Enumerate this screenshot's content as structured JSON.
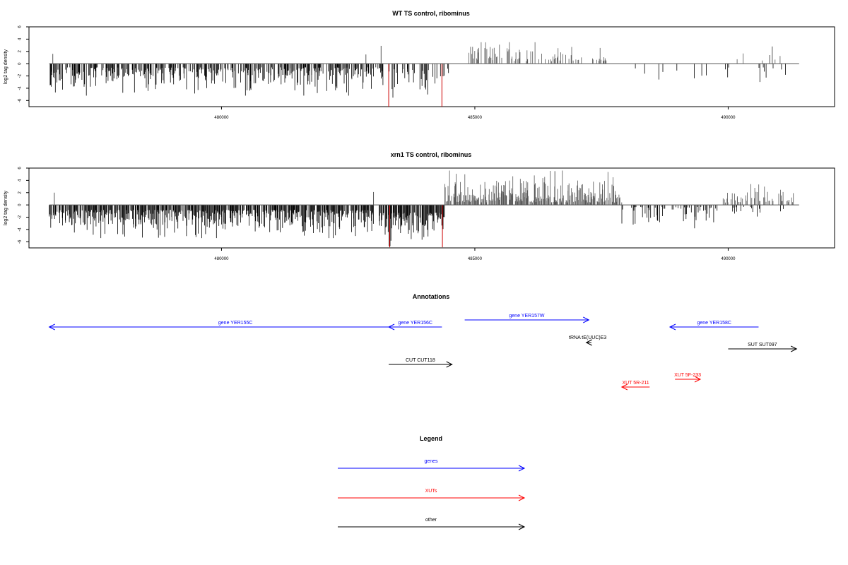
{
  "colors": {
    "neg": "#000000",
    "pos": "#555555",
    "red": "#cc0000",
    "gene": "#0000ff",
    "xut": "#ff0000",
    "other": "#000000"
  },
  "chart_data": [
    {
      "type": "bar",
      "title": "WT TS control, ribominus",
      "ylabel": "log2 tag density",
      "xlim": [
        476200,
        492100
      ],
      "ylim": [
        -7,
        6
      ],
      "xticks": [
        480000,
        485000,
        490000
      ],
      "yticks": [
        -6,
        -4,
        -2,
        0,
        2,
        4,
        6
      ],
      "baseline_range": [
        476600,
        491400
      ],
      "regions": [
        {
          "from": 476600,
          "to": 483200,
          "sign": -1,
          "density": 0.55,
          "min": 0.6,
          "max": 5.2,
          "color": "neg"
        },
        {
          "from": 483300,
          "to": 484500,
          "sign": -1,
          "density": 0.28,
          "min": 0.8,
          "max": 5.8,
          "color": "neg"
        },
        {
          "from": 484800,
          "to": 487600,
          "sign": 1,
          "density": 0.32,
          "min": 0.4,
          "max": 3.5,
          "color": "pos"
        },
        {
          "from": 487600,
          "to": 491300,
          "sign": -1,
          "density": 0.07,
          "min": 0.5,
          "max": 3.6,
          "color": "neg"
        },
        {
          "from": 489900,
          "to": 491200,
          "sign": 1,
          "density": 0.05,
          "min": 0.4,
          "max": 1.8,
          "color": "pos"
        }
      ],
      "spikes": [
        {
          "x": 476670,
          "y": 1.6,
          "color": "pos"
        },
        {
          "x": 482850,
          "y": 1.5,
          "color": "pos"
        },
        {
          "x": 483150,
          "y": 2.9,
          "color": "pos"
        },
        {
          "x": 483300,
          "y": -7.0,
          "color": "red"
        },
        {
          "x": 484350,
          "y": -7.0,
          "color": "red"
        },
        {
          "x": 490870,
          "y": 2.8,
          "color": "pos"
        },
        {
          "x": 490820,
          "y": 1.4,
          "color": "pos"
        }
      ]
    },
    {
      "type": "bar",
      "title": "xrn1 TS control, ribominus",
      "ylabel": "log2 tag density",
      "xlim": [
        476200,
        492100
      ],
      "ylim": [
        -7,
        6
      ],
      "xticks": [
        480000,
        485000,
        490000
      ],
      "yticks": [
        -6,
        -4,
        -2,
        0,
        2,
        4,
        6
      ],
      "baseline_range": [
        476600,
        491400
      ],
      "regions": [
        {
          "from": 476600,
          "to": 483000,
          "sign": -1,
          "density": 0.75,
          "min": 0.8,
          "max": 5.4,
          "color": "neg"
        },
        {
          "from": 483100,
          "to": 484400,
          "sign": -1,
          "density": 0.8,
          "min": 1.2,
          "max": 6.8,
          "color": "neg"
        },
        {
          "from": 484400,
          "to": 487900,
          "sign": 1,
          "density": 0.75,
          "min": 0.4,
          "max": 5.6,
          "color": "pos"
        },
        {
          "from": 487900,
          "to": 489800,
          "sign": -1,
          "density": 0.3,
          "min": 0.3,
          "max": 3.8,
          "color": "neg"
        },
        {
          "from": 489900,
          "to": 491300,
          "sign": 1,
          "density": 0.3,
          "min": 0.4,
          "max": 3.4,
          "color": "pos"
        },
        {
          "from": 490000,
          "to": 491200,
          "sign": -1,
          "density": 0.12,
          "min": 0.3,
          "max": 2.2,
          "color": "neg"
        }
      ],
      "spikes": [
        {
          "x": 476700,
          "y": 2.0,
          "color": "pos"
        },
        {
          "x": 483000,
          "y": 2.1,
          "color": "pos"
        },
        {
          "x": 483320,
          "y": -6.9,
          "color": "red"
        },
        {
          "x": 484360,
          "y": -6.9,
          "color": "red"
        },
        {
          "x": 486580,
          "y": 5.5,
          "color": "pos"
        }
      ]
    }
  ],
  "annotations": {
    "title": "Annotations",
    "items": [
      {
        "label": "gene YER155C",
        "x1": 483950,
        "x2": 476600,
        "row": "r1",
        "color": "gene"
      },
      {
        "label": "gene YER156C",
        "x1": 484350,
        "x2": 483300,
        "row": "r1",
        "color": "gene"
      },
      {
        "label": "gene YER157W",
        "x1": 484800,
        "x2": 487250,
        "row": "r0",
        "color": "gene"
      },
      {
        "label": "gene YER158C",
        "x1": 490600,
        "x2": 488850,
        "row": "r1",
        "color": "gene"
      },
      {
        "label": "tRNA tE(UUC)E3",
        "x1": 487300,
        "x2": 487200,
        "row": "r2",
        "color": "other"
      },
      {
        "label": "SUT SUT097",
        "x1": 490000,
        "x2": 491350,
        "row": "r3",
        "color": "other"
      },
      {
        "label": "CUT CUT118",
        "x1": 483300,
        "x2": 484550,
        "row": "r4",
        "color": "other"
      },
      {
        "label": "XUT 5F-233",
        "x1": 488950,
        "x2": 489450,
        "row": "r5",
        "color": "xut"
      },
      {
        "label": "XUT 5R-211",
        "x1": 488450,
        "x2": 487900,
        "row": "r6",
        "color": "xut"
      }
    ]
  },
  "legend": {
    "title": "Legend",
    "entries": [
      {
        "label": "genes",
        "color": "gene"
      },
      {
        "label": "XUTs",
        "color": "xut"
      },
      {
        "label": "other",
        "color": "other"
      }
    ]
  }
}
